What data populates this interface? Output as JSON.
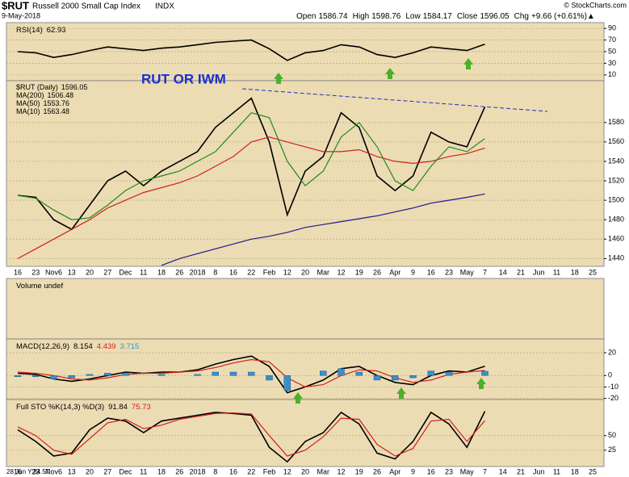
{
  "header": {
    "symbol": "$RUT",
    "name": "Russell 2000 Small Cap Index",
    "exchange": "INDX",
    "date": "9-May-2018",
    "credit": "© StockCharts.com",
    "quote": [
      {
        "label": "Open",
        "value": 1586.74
      },
      {
        "label": "High",
        "value": 1598.76
      },
      {
        "label": "Low",
        "value": 1584.17
      },
      {
        "label": "Close",
        "value": 1596.05
      },
      {
        "label": "Chg",
        "value": "+9.66 (+0.61%)▲"
      }
    ],
    "annotation": "RUT OR IWM",
    "cursor": "28 Jun Y:84.57"
  },
  "chart_data": [
    {
      "type": "line",
      "title": "RSI(14)",
      "ylim": [
        0,
        100
      ],
      "yticks": [
        10,
        30,
        50,
        70,
        90
      ],
      "grid": true,
      "series": [
        {
          "color": "#000000",
          "values": [
            50,
            48,
            40,
            45,
            52,
            58,
            55,
            52,
            56,
            58,
            62,
            66,
            68,
            70,
            55,
            35,
            48,
            52,
            62,
            58,
            45,
            40,
            48,
            58,
            55,
            52,
            62.93,
            null,
            null,
            null,
            null,
            null,
            null
          ]
        }
      ]
    },
    {
      "type": "line",
      "ylim": [
        1432,
        1623
      ],
      "yticks": [
        1440,
        1460,
        1480,
        1500,
        1520,
        1540,
        1560,
        1580
      ],
      "grid": true,
      "categories": [
        "16",
        "23",
        "Nov6",
        "13",
        "20",
        "27",
        "Dec",
        "11",
        "18",
        "26",
        "2018",
        "8",
        "16",
        "22",
        "Feb",
        "12",
        "20",
        "Mar",
        "12",
        "19",
        "26",
        "Apr",
        "9",
        "16",
        "23",
        "May",
        "7",
        "14",
        "21",
        "Jun",
        "11",
        "18",
        "25"
      ],
      "series": [
        {
          "name": "$RUT (Daily)",
          "color": "#000000",
          "values": [
            1505,
            1503,
            1480,
            1470,
            1495,
            1520,
            1530,
            1515,
            1530,
            1540,
            1550,
            1575,
            1590,
            1605,
            1560,
            1485,
            1530,
            1545,
            1590,
            1575,
            1525,
            1510,
            1525,
            1570,
            1560,
            1555,
            1596.05,
            null,
            null,
            null,
            null,
            null,
            null
          ]
        },
        {
          "name": "MA(200)",
          "color": "#1a1a8c",
          "values": [
            null,
            null,
            null,
            null,
            null,
            null,
            null,
            null,
            1433,
            1440,
            1445,
            1450,
            1455,
            1460,
            1463,
            1467,
            1472,
            1475,
            1478,
            1481,
            1484,
            1488,
            1492,
            1497,
            1500,
            1503,
            1506.48,
            null,
            null,
            null,
            null,
            null,
            null
          ]
        },
        {
          "name": "MA(50)",
          "color": "#d02020",
          "values": [
            1440,
            1450,
            1460,
            1470,
            1480,
            1492,
            1500,
            1508,
            1513,
            1518,
            1525,
            1535,
            1545,
            1560,
            1565,
            1560,
            1555,
            1550,
            1550,
            1552,
            1545,
            1540,
            1538,
            1540,
            1545,
            1548,
            1553.76,
            null,
            null,
            null,
            null,
            null,
            null
          ]
        },
        {
          "name": "MA(10)",
          "color": "#1f8a1f",
          "values": [
            1505,
            1502,
            1490,
            1480,
            1482,
            1495,
            1510,
            1520,
            1525,
            1530,
            1540,
            1550,
            1570,
            1590,
            1585,
            1540,
            1515,
            1530,
            1565,
            1580,
            1555,
            1520,
            1510,
            1535,
            1555,
            1550,
            1563.48,
            null,
            null,
            null,
            null,
            null,
            null
          ]
        }
      ]
    },
    {
      "type": "bar",
      "title": "Volume undef"
    },
    {
      "type": "line",
      "title": "MACD(12,26,9)",
      "ylim": [
        -21,
        32
      ],
      "yticks": [
        -20,
        -10,
        0,
        20
      ],
      "grid": true,
      "series": [
        {
          "color": "#000000",
          "values": [
            2,
            1,
            -3,
            -5,
            -3,
            0,
            3,
            2,
            3,
            3,
            5,
            10,
            14,
            17,
            8,
            -15,
            -10,
            -4,
            6,
            8,
            0,
            -6,
            -8,
            0,
            4,
            3,
            8.154,
            null,
            null,
            null,
            null,
            null,
            null
          ]
        },
        {
          "color": "#d02020",
          "values": [
            3,
            2,
            0,
            -3,
            -4,
            -2,
            1,
            2,
            2,
            3,
            4,
            7,
            11,
            14,
            12,
            -2,
            -10,
            -8,
            0,
            5,
            4,
            -2,
            -6,
            -4,
            1,
            3,
            4.439,
            null,
            null,
            null,
            null,
            null,
            null
          ]
        },
        {
          "type": "bar",
          "color": "#3a8fc8",
          "values": [
            -1,
            -1,
            -3,
            -2,
            1,
            2,
            2,
            0,
            1,
            0,
            1,
            3,
            3,
            3,
            -4,
            -13,
            0,
            4,
            6,
            3,
            -4,
            -4,
            -2,
            4,
            3,
            0,
            3.715,
            null,
            null,
            null,
            null,
            null,
            null
          ]
        }
      ]
    },
    {
      "type": "line",
      "title": "Full STO %K(14,3) %D(3)",
      "ylim": [
        -3,
        112
      ],
      "yticks": [
        25,
        50
      ],
      "grid": true,
      "series": [
        {
          "color": "#000000",
          "values": [
            60,
            40,
            15,
            20,
            60,
            80,
            75,
            55,
            75,
            80,
            85,
            90,
            88,
            85,
            30,
            5,
            40,
            55,
            90,
            70,
            20,
            10,
            40,
            90,
            70,
            30,
            91.84,
            null,
            null,
            null,
            null,
            null,
            null
          ]
        },
        {
          "color": "#d02020",
          "values": [
            65,
            50,
            25,
            18,
            45,
            72,
            78,
            62,
            68,
            78,
            83,
            88,
            89,
            87,
            50,
            15,
            25,
            48,
            80,
            78,
            35,
            15,
            28,
            75,
            78,
            40,
            75.73,
            null,
            null,
            null,
            null,
            null,
            null
          ]
        }
      ]
    }
  ]
}
